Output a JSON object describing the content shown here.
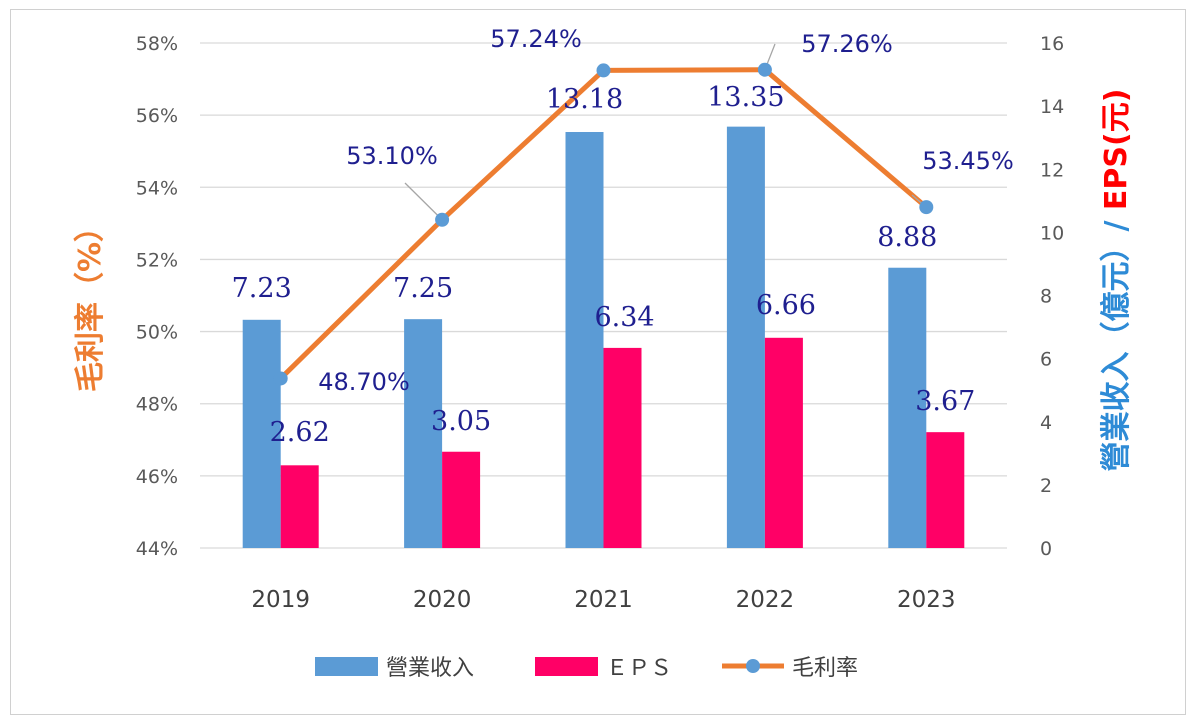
{
  "chart_data": {
    "type": "bar+line",
    "categories": [
      "2019",
      "2020",
      "2021",
      "2022",
      "2023"
    ],
    "series": [
      {
        "name": "營業收入",
        "type": "bar",
        "axis": "right",
        "color": "#5b9bd5",
        "values": [
          7.23,
          7.25,
          13.18,
          13.35,
          8.88
        ],
        "labels": [
          "7.23",
          "7.25",
          "13.18",
          "13.35",
          "8.88"
        ]
      },
      {
        "name": "ＥＰＳ",
        "type": "bar",
        "axis": "right",
        "color": "#ff0066",
        "values": [
          2.62,
          3.05,
          6.34,
          6.66,
          3.67
        ],
        "labels": [
          "2.62",
          "3.05",
          "6.34",
          "6.66",
          "3.67"
        ]
      },
      {
        "name": "毛利率",
        "type": "line",
        "axis": "left",
        "color": "#ed7d31",
        "marker_color": "#5b9bd5",
        "values": [
          48.7,
          53.1,
          57.24,
          57.26,
          53.45
        ],
        "labels": [
          "48.70%",
          "53.10%",
          "57.24%",
          "57.26%",
          "53.45%"
        ]
      }
    ],
    "left_axis": {
      "title": "毛利率（%）",
      "title_color": "#ed7d31",
      "ylim": [
        44,
        58
      ],
      "ticks": [
        "44%",
        "46%",
        "48%",
        "50%",
        "52%",
        "54%",
        "56%",
        "58%"
      ],
      "tick_values": [
        44,
        46,
        48,
        50,
        52,
        54,
        56,
        58
      ]
    },
    "right_axis": {
      "title_part1": "營業收入（億元）/ ",
      "title_part1_color": "#2e8bd6",
      "title_part2": "EPS(元)",
      "title_part2_color": "#ff0000",
      "ylim": [
        0,
        16
      ],
      "ticks": [
        "0",
        "2",
        "4",
        "6",
        "8",
        "10",
        "12",
        "14",
        "16"
      ],
      "tick_values": [
        0,
        2,
        4,
        6,
        8,
        10,
        12,
        14,
        16
      ]
    },
    "grid": true,
    "legend_position": "bottom"
  }
}
